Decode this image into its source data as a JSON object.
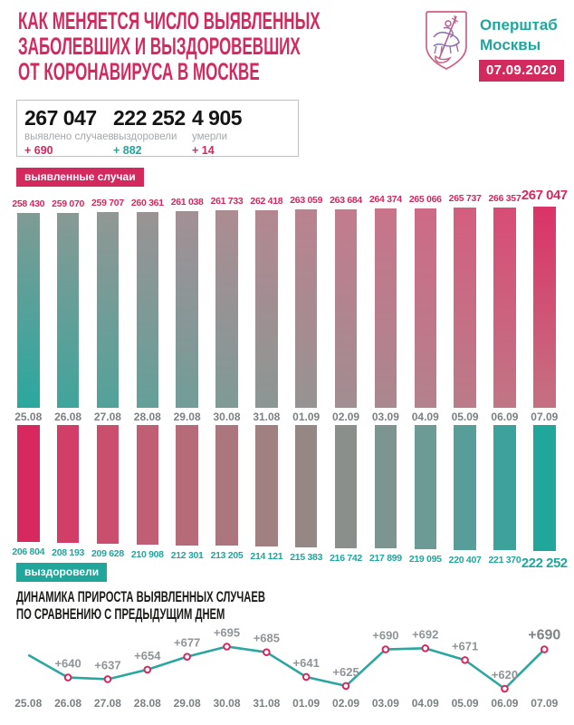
{
  "colors": {
    "accent_pink": "#D4295F",
    "accent_teal": "#21A69C",
    "line_teal": "#2AA79E",
    "marker_ring": "#D4295F",
    "date_gray": "#7B8082",
    "trend_label_gray": "#8F9496",
    "stat_label_gray": "#A4A8AA",
    "box_border_gray": "#BFC1C2"
  },
  "header": {
    "title_lines": [
      "КАК МЕНЯЕТСЯ ЧИСЛО ВЫЯВЛЕННЫХ",
      "ЗАБОЛЕВШИХ И ВЫЗДОРОВЕВШИХ",
      "ОТ КОРОНАВИРУСА В МОСКВЕ"
    ],
    "logo": {
      "crest_icon": "moscow-coat-of-arms",
      "org_lines": [
        "Оперштаб",
        "Москвы"
      ],
      "date_badge": "07.09.2020"
    }
  },
  "stats": {
    "items": [
      {
        "value": "267 047",
        "label": "выявлено случаев",
        "delta": "+ 690",
        "delta_color": "#D4295F"
      },
      {
        "value": "222 252",
        "label": "выздоровели",
        "delta": "+ 882",
        "delta_color": "#21A69C"
      },
      {
        "value": "4 905",
        "label": "умерли",
        "delta": "+ 14",
        "delta_color": "#D4295F"
      }
    ]
  },
  "chart_data": [
    {
      "type": "bar",
      "name": "confirmed-cases-cumulative",
      "badge": "выявленные случаи",
      "direction": "up",
      "categories": [
        "25.08",
        "26.08",
        "27.08",
        "28.08",
        "29.08",
        "30.08",
        "31.08",
        "01.09",
        "02.09",
        "03.09",
        "04.09",
        "05.09",
        "06.09",
        "07.09"
      ],
      "values": [
        258430,
        259070,
        259707,
        260361,
        261038,
        261733,
        262418,
        263059,
        263684,
        264374,
        265066,
        265737,
        266357,
        267047
      ],
      "value_labels": [
        "258 430",
        "259 070",
        "259 707",
        "260 361",
        "261 038",
        "261 733",
        "262 418",
        "263 059",
        "263 684",
        "264 374",
        "265 066",
        "265 737",
        "266 357",
        "267 047"
      ],
      "ylim": [
        0,
        267047
      ],
      "bar_colors_top": [
        "#7F9B94",
        "#889994",
        "#919794",
        "#9A9394",
        "#A39095",
        "#AC8C93",
        "#B48791",
        "#BB8290",
        "#C27C8E",
        "#C8748B",
        "#CE6A86",
        "#D45E80",
        "#D84C76",
        "#DB3368"
      ],
      "bar_colors_bottom": [
        "#2AA89E",
        "#3FA59C",
        "#52A29A",
        "#63A099",
        "#719D98",
        "#7F9A96",
        "#8B9794",
        "#969392",
        "#A08E91",
        "#AA888F",
        "#B3828C",
        "#BA7C89",
        "#C07685",
        "#C47182"
      ]
    },
    {
      "type": "bar",
      "name": "recovered-cumulative",
      "badge": "выздоровели",
      "direction": "down",
      "categories": [
        "25.08",
        "26.08",
        "27.08",
        "28.08",
        "29.08",
        "30.08",
        "31.08",
        "01.09",
        "02.09",
        "03.09",
        "04.09",
        "05.09",
        "06.09",
        "07.09"
      ],
      "values": [
        206804,
        208193,
        209628,
        210908,
        212301,
        213205,
        214121,
        215383,
        216742,
        217899,
        219095,
        220407,
        221370,
        222252
      ],
      "value_labels": [
        "206 804",
        "208 193",
        "209 628",
        "210 908",
        "212 301",
        "213 205",
        "214 121",
        "215 383",
        "216 742",
        "217 899",
        "219 095",
        "220 407",
        "221 370",
        "222 252"
      ],
      "ylim": [
        0,
        222252
      ],
      "bar_colors": [
        "#D7295F",
        "#D13E67",
        "#CA4F6E",
        "#C05E74",
        "#B66B79",
        "#AB767D",
        "#A08081",
        "#958884",
        "#8A8F8B",
        "#7D9590",
        "#6C9A95",
        "#579E98",
        "#3DA29A",
        "#21A69C"
      ]
    },
    {
      "type": "line",
      "name": "daily-increase-of-confirmed-cases",
      "title_lines": [
        "ДИНАМИКА ПРИРОСТА ВЫЯВЛЕННЫХ СЛУЧАЕВ",
        "ПО СРАВНЕНИЮ С ПРЕДЫДУЩИМ ДНЕМ"
      ],
      "categories": [
        "25.08",
        "26.08",
        "27.08",
        "28.08",
        "29.08",
        "30.08",
        "31.08",
        "01.09",
        "02.09",
        "03.09",
        "04.09",
        "05.09",
        "06.09",
        "07.09"
      ],
      "values": [
        680,
        640,
        637,
        654,
        677,
        695,
        685,
        641,
        625,
        690,
        692,
        671,
        620,
        690
      ],
      "point_labels": [
        "",
        "+640",
        "+637",
        "+654",
        "+677",
        "+695",
        "+685",
        "+641",
        "+625",
        "+690",
        "+692",
        "+671",
        "+620",
        "+690"
      ],
      "ylim": [
        620,
        695
      ],
      "grid": "off",
      "legend": "none"
    }
  ]
}
